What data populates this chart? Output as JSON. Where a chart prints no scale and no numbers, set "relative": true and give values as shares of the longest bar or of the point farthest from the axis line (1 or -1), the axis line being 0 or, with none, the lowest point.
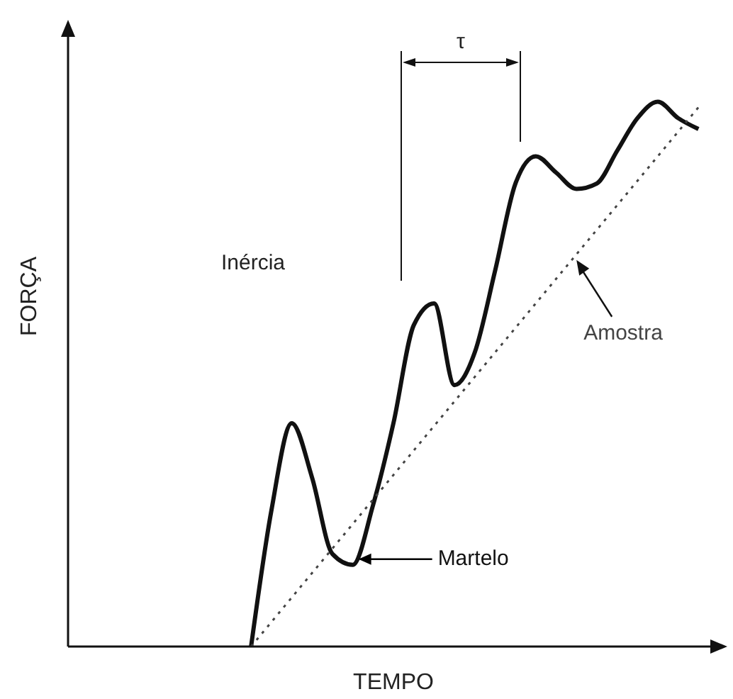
{
  "chart_data": {
    "type": "line",
    "relative": true,
    "xlabel": "TEMPO",
    "ylabel": "FORÇA",
    "categories": [
      null,
      null,
      null,
      null,
      null,
      null,
      null,
      null,
      null,
      null,
      null,
      null,
      null,
      null,
      null,
      null,
      null,
      null,
      null,
      null,
      null,
      null,
      null,
      null,
      null,
      null,
      null,
      null,
      null,
      null,
      null,
      null,
      null
    ],
    "series": [
      {
        "name": "Martelo",
        "color": "#111111",
        "line_style": "solid",
        "values": [
          null,
          null,
          null,
          null,
          null,
          null,
          null,
          null,
          null,
          0,
          0.25,
          0.41,
          0.31,
          0.17,
          0.15,
          0.26,
          0.41,
          0.59,
          0.63,
          0.48,
          0.54,
          0.69,
          0.85,
          0.9,
          0.87,
          0.84,
          0.85,
          0.91,
          0.97,
          1,
          0.97,
          0.95,
          null
        ]
      },
      {
        "name": "Amostra",
        "color": "#444444",
        "line_style": "dotted",
        "values": [
          null,
          null,
          null,
          null,
          null,
          null,
          null,
          null,
          null,
          0,
          0.045,
          0.09,
          0.135,
          0.18,
          0.225,
          0.27,
          0.315,
          0.36,
          0.405,
          0.45,
          0.495,
          0.54,
          0.585,
          0.63,
          0.675,
          0.72,
          0.765,
          0.81,
          0.855,
          0.9,
          0.945,
          0.99,
          null
        ]
      }
    ],
    "annotations": [
      "Inércia",
      "τ"
    ],
    "marker": "none",
    "grid": false,
    "legend": false
  }
}
